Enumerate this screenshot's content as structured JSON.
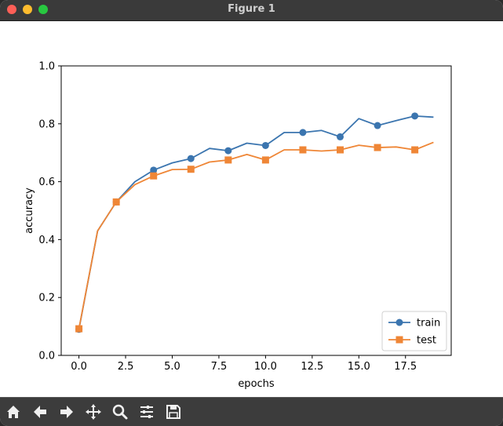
{
  "window": {
    "title": "Figure 1"
  },
  "toolbar": {
    "buttons": [
      {
        "name": "home-icon"
      },
      {
        "name": "back-icon"
      },
      {
        "name": "forward-icon"
      },
      {
        "name": "pan-icon"
      },
      {
        "name": "zoom-icon"
      },
      {
        "name": "configure-subplots-icon"
      },
      {
        "name": "save-icon"
      }
    ]
  },
  "chart_data": {
    "type": "line",
    "xlabel": "epochs",
    "ylabel": "accuracy",
    "xlim": [
      -0.95,
      19.95
    ],
    "ylim": [
      0.0,
      1.0
    ],
    "xticks": [
      0.0,
      2.5,
      5.0,
      7.5,
      10.0,
      12.5,
      15.0,
      17.5
    ],
    "xtick_labels": [
      "0.0",
      "2.5",
      "5.0",
      "7.5",
      "10.0",
      "12.5",
      "15.0",
      "17.5"
    ],
    "yticks": [
      0.0,
      0.2,
      0.4,
      0.6,
      0.8,
      1.0
    ],
    "ytick_labels": [
      "0.0",
      "0.2",
      "0.4",
      "0.6",
      "0.8",
      "1.0"
    ],
    "legend_location": "lower-right",
    "x": [
      0,
      1,
      2,
      3,
      4,
      5,
      6,
      7,
      8,
      9,
      10,
      11,
      12,
      13,
      14,
      15,
      16,
      17,
      18,
      19
    ],
    "series": [
      {
        "name": "train",
        "color": "#3b75af",
        "marker": "circle",
        "markevery": 2,
        "values": [
          0.09,
          0.43,
          0.53,
          0.6,
          0.64,
          0.665,
          0.68,
          0.715,
          0.707,
          0.733,
          0.725,
          0.77,
          0.77,
          0.777,
          0.755,
          0.818,
          0.794,
          0.811,
          0.827,
          0.823
        ]
      },
      {
        "name": "test",
        "color": "#ef8636",
        "marker": "square",
        "markevery": 2,
        "values": [
          0.092,
          0.43,
          0.53,
          0.59,
          0.62,
          0.642,
          0.643,
          0.668,
          0.675,
          0.694,
          0.675,
          0.71,
          0.71,
          0.706,
          0.71,
          0.726,
          0.718,
          0.72,
          0.71,
          0.736
        ]
      }
    ]
  }
}
